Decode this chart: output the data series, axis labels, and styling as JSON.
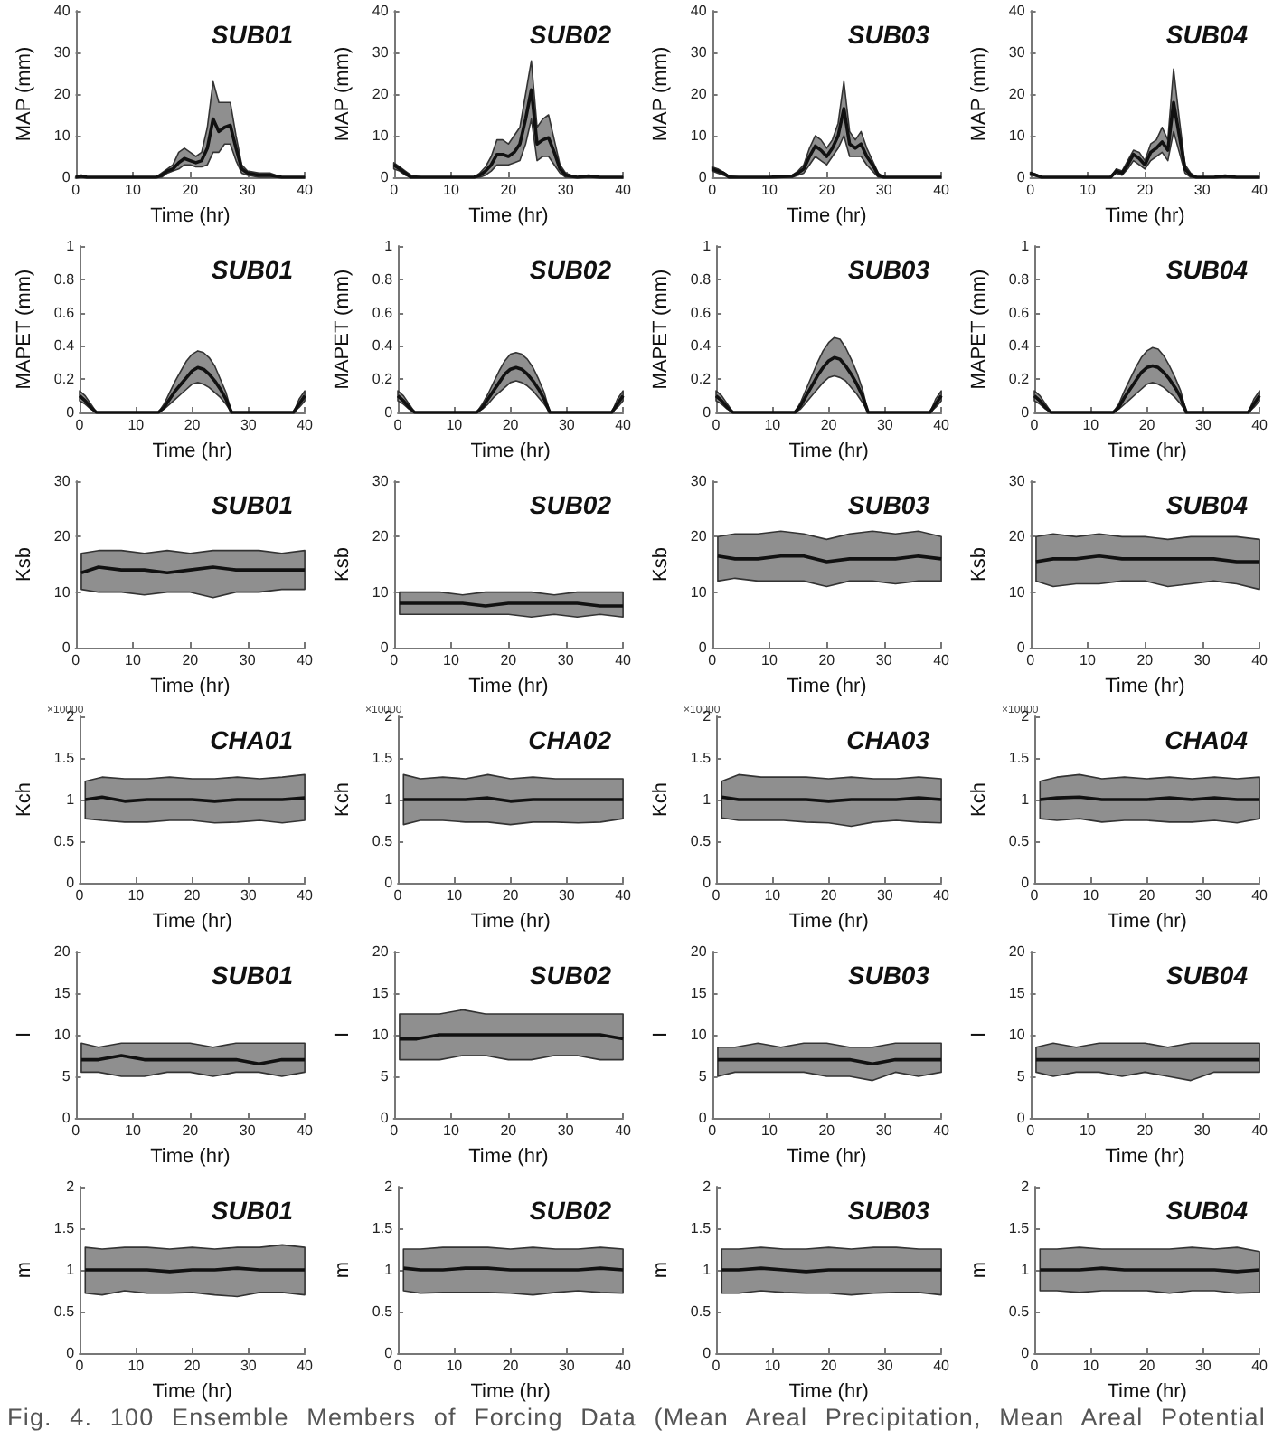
{
  "chart_data": [
    {
      "type": "line",
      "title": "SUB01",
      "xlabel": "Time (hr)",
      "ylabel": "MAP (mm)",
      "xlim": [
        0,
        40
      ],
      "xticks": [
        0,
        10,
        20,
        30,
        40
      ],
      "ylim": [
        0,
        40
      ],
      "yticks": [
        0,
        10,
        20,
        30,
        40
      ],
      "x": [
        0,
        1,
        2,
        3,
        5,
        10,
        14,
        15,
        16,
        17,
        18,
        19,
        20,
        21,
        22,
        23,
        24,
        25,
        26,
        27,
        28,
        29,
        30,
        32,
        34,
        36,
        40
      ],
      "series": [
        {
          "color": "#111111",
          "values": [
            0,
            0.3,
            0,
            0,
            0,
            0,
            0,
            0.5,
            1.5,
            2,
            3.5,
            4.5,
            4,
            3.5,
            4,
            7,
            14,
            11,
            12,
            12.5,
            7,
            2,
            1,
            0.5,
            0.5,
            0,
            0
          ],
          "upper": [
            0,
            0.5,
            0,
            0,
            0,
            0,
            0,
            1,
            2,
            3,
            6,
            7,
            6,
            5,
            6,
            12,
            23,
            18,
            18,
            18,
            10,
            3,
            1.5,
            1,
            1,
            0,
            0
          ],
          "lower": [
            0,
            0,
            0,
            0,
            0,
            0,
            0,
            0,
            1,
            1.5,
            2,
            3,
            3,
            2.5,
            2.5,
            3,
            6,
            6,
            8,
            8,
            4,
            1,
            0.5,
            0,
            0,
            0,
            0
          ]
        }
      ]
    },
    {
      "type": "line",
      "title": "SUB02",
      "xlabel": "Time (hr)",
      "ylabel": "MAP (mm)",
      "xlim": [
        0,
        40
      ],
      "xticks": [
        0,
        10,
        20,
        30,
        40
      ],
      "ylim": [
        0,
        40
      ],
      "yticks": [
        0,
        10,
        20,
        30,
        40
      ],
      "x": [
        0,
        1,
        2,
        3,
        5,
        10,
        14,
        15,
        16,
        17,
        18,
        19,
        20,
        21,
        22,
        23,
        24,
        25,
        26,
        27,
        28,
        29,
        30,
        32,
        34,
        36,
        40
      ],
      "series": [
        {
          "color": "#111111",
          "values": [
            3,
            2,
            1,
            0,
            0,
            0,
            0,
            0.5,
            1.5,
            3,
            5.5,
            5.5,
            5,
            6,
            8,
            14,
            21,
            8,
            9,
            9.5,
            6,
            2,
            0.5,
            0,
            0.3,
            0,
            0
          ],
          "upper": [
            3.5,
            2.5,
            1.5,
            0.5,
            0,
            0,
            0,
            1,
            2.5,
            5,
            9,
            9,
            8,
            10,
            12,
            20,
            28,
            12,
            14,
            15,
            9,
            3,
            1,
            0,
            0.5,
            0,
            0
          ],
          "lower": [
            2,
            1.5,
            0.5,
            0,
            0,
            0,
            0,
            0,
            0.5,
            1.5,
            3,
            3,
            3,
            3.5,
            4,
            8,
            14,
            4,
            5,
            5,
            3,
            1,
            0,
            0,
            0,
            0,
            0
          ]
        }
      ]
    },
    {
      "type": "line",
      "title": "SUB03",
      "xlabel": "Time (hr)",
      "ylabel": "MAP (mm)",
      "xlim": [
        0,
        40
      ],
      "xticks": [
        0,
        10,
        20,
        30,
        40
      ],
      "ylim": [
        0,
        40
      ],
      "yticks": [
        0,
        10,
        20,
        30,
        40
      ],
      "x": [
        0,
        1,
        2,
        3,
        5,
        10,
        14,
        15,
        16,
        17,
        18,
        19,
        20,
        21,
        22,
        23,
        24,
        25,
        26,
        27,
        28,
        29,
        30,
        32,
        34,
        36,
        40
      ],
      "series": [
        {
          "color": "#111111",
          "values": [
            2,
            1.5,
            1,
            0,
            0,
            0,
            0.3,
            1,
            2,
            5,
            7.5,
            6.5,
            5,
            7,
            10,
            16.5,
            8,
            7,
            8,
            5,
            3,
            0.5,
            0,
            0,
            0,
            0,
            0
          ],
          "upper": [
            2.5,
            2,
            1.2,
            0.3,
            0,
            0,
            0.5,
            1.5,
            3,
            7,
            10,
            9,
            7,
            9,
            13,
            23,
            11,
            9,
            11,
            7,
            4,
            1,
            0,
            0,
            0,
            0,
            0
          ],
          "lower": [
            1.5,
            1,
            0.5,
            0,
            0,
            0,
            0,
            0.5,
            1,
            3,
            5,
            4,
            3,
            5,
            7,
            10,
            5,
            5,
            5,
            3,
            1.5,
            0,
            0,
            0,
            0,
            0,
            0
          ]
        }
      ]
    },
    {
      "type": "line",
      "title": "SUB04",
      "xlabel": "Time (hr)",
      "ylabel": "MAP (mm)",
      "xlim": [
        0,
        40
      ],
      "xticks": [
        0,
        10,
        20,
        30,
        40
      ],
      "ylim": [
        0,
        40
      ],
      "yticks": [
        0,
        10,
        20,
        30,
        40
      ],
      "x": [
        0,
        1,
        2,
        3,
        5,
        10,
        14,
        15,
        16,
        17,
        18,
        19,
        20,
        21,
        22,
        23,
        24,
        25,
        26,
        27,
        28,
        29,
        30,
        32,
        34,
        36,
        40
      ],
      "series": [
        {
          "color": "#111111",
          "values": [
            1,
            0.5,
            0,
            0,
            0,
            0,
            0,
            1.5,
            1,
            3,
            5.5,
            4.5,
            3,
            6,
            7,
            8.5,
            6.5,
            18,
            10,
            2,
            0.5,
            0,
            0,
            0,
            0.3,
            0,
            0
          ],
          "upper": [
            1.2,
            0.7,
            0,
            0,
            0,
            0,
            0,
            2,
            1.5,
            4,
            6.5,
            6,
            4,
            8,
            9,
            12,
            9,
            26,
            14,
            3,
            1,
            0,
            0,
            0,
            0.5,
            0,
            0
          ],
          "lower": [
            0.5,
            0.3,
            0,
            0,
            0,
            0,
            0,
            1,
            0.5,
            2,
            4,
            3,
            2,
            4,
            5,
            6,
            4,
            11,
            6,
            1,
            0,
            0,
            0,
            0,
            0,
            0,
            0
          ]
        }
      ]
    },
    {
      "type": "line",
      "title": "SUB01",
      "xlabel": "Time (hr)",
      "ylabel": "MAPET (mm)",
      "xlim": [
        0,
        40
      ],
      "xticks": [
        0,
        10,
        20,
        30,
        40
      ],
      "ylim": [
        0,
        1
      ],
      "yticks": [
        0,
        0.2,
        0.4,
        0.6,
        0.8,
        1
      ],
      "x": [
        0,
        1,
        2,
        3,
        14,
        15,
        16,
        17,
        18,
        19,
        20,
        21,
        22,
        23,
        24,
        25,
        26,
        27,
        38,
        39,
        40
      ],
      "series": [
        {
          "color": "#111111",
          "values": [
            0.1,
            0.07,
            0.03,
            0,
            0,
            0.03,
            0.08,
            0.13,
            0.17,
            0.21,
            0.25,
            0.27,
            0.26,
            0.23,
            0.19,
            0.14,
            0.08,
            0,
            0,
            0.05,
            0.1
          ],
          "upper": [
            0.13,
            0.1,
            0.05,
            0,
            0,
            0.05,
            0.12,
            0.19,
            0.25,
            0.31,
            0.35,
            0.37,
            0.36,
            0.33,
            0.28,
            0.2,
            0.12,
            0,
            0,
            0.08,
            0.13
          ],
          "lower": [
            0.07,
            0.05,
            0.02,
            0,
            0,
            0.02,
            0.05,
            0.08,
            0.11,
            0.14,
            0.17,
            0.18,
            0.17,
            0.15,
            0.12,
            0.09,
            0.05,
            0,
            0,
            0.03,
            0.07
          ]
        }
      ]
    },
    {
      "type": "line",
      "title": "SUB02",
      "xlabel": "Time (hr)",
      "ylabel": "MAPET (mm)",
      "xlim": [
        0,
        40
      ],
      "xticks": [
        0,
        10,
        20,
        30,
        40
      ],
      "ylim": [
        0,
        1
      ],
      "yticks": [
        0,
        0.2,
        0.4,
        0.6,
        0.8,
        1
      ],
      "x": [
        0,
        1,
        2,
        3,
        14,
        15,
        16,
        17,
        18,
        19,
        20,
        21,
        22,
        23,
        24,
        25,
        26,
        27,
        38,
        39,
        40
      ],
      "series": [
        {
          "color": "#111111",
          "values": [
            0.1,
            0.07,
            0.03,
            0,
            0,
            0.03,
            0.08,
            0.13,
            0.18,
            0.23,
            0.26,
            0.27,
            0.26,
            0.23,
            0.19,
            0.14,
            0.08,
            0,
            0,
            0.05,
            0.1
          ],
          "upper": [
            0.13,
            0.1,
            0.05,
            0,
            0,
            0.05,
            0.11,
            0.18,
            0.25,
            0.31,
            0.35,
            0.36,
            0.35,
            0.32,
            0.27,
            0.2,
            0.12,
            0,
            0,
            0.08,
            0.13
          ],
          "lower": [
            0.07,
            0.05,
            0.02,
            0,
            0,
            0.02,
            0.05,
            0.09,
            0.12,
            0.15,
            0.18,
            0.19,
            0.18,
            0.16,
            0.13,
            0.09,
            0.05,
            0,
            0,
            0.03,
            0.07
          ]
        }
      ]
    },
    {
      "type": "line",
      "title": "SUB03",
      "xlabel": "Time (hr)",
      "ylabel": "MAPET (mm)",
      "xlim": [
        0,
        40
      ],
      "xticks": [
        0,
        10,
        20,
        30,
        40
      ],
      "ylim": [
        0,
        1
      ],
      "yticks": [
        0,
        0.2,
        0.4,
        0.6,
        0.8,
        1
      ],
      "x": [
        0,
        1,
        2,
        3,
        14,
        15,
        16,
        17,
        18,
        19,
        20,
        21,
        22,
        23,
        24,
        25,
        26,
        27,
        38,
        39,
        40
      ],
      "series": [
        {
          "color": "#111111",
          "values": [
            0.1,
            0.07,
            0.03,
            0,
            0,
            0.04,
            0.1,
            0.16,
            0.22,
            0.27,
            0.31,
            0.33,
            0.32,
            0.28,
            0.23,
            0.17,
            0.1,
            0,
            0,
            0.05,
            0.1
          ],
          "upper": [
            0.13,
            0.1,
            0.05,
            0,
            0,
            0.06,
            0.14,
            0.22,
            0.3,
            0.37,
            0.42,
            0.45,
            0.44,
            0.39,
            0.32,
            0.24,
            0.14,
            0,
            0,
            0.08,
            0.13
          ],
          "lower": [
            0.07,
            0.05,
            0.02,
            0,
            0,
            0.02,
            0.06,
            0.1,
            0.14,
            0.18,
            0.21,
            0.22,
            0.21,
            0.19,
            0.15,
            0.11,
            0.06,
            0,
            0,
            0.03,
            0.07
          ]
        }
      ]
    },
    {
      "type": "line",
      "title": "SUB04",
      "xlabel": "Time (hr)",
      "ylabel": "MAPET (mm)",
      "xlim": [
        0,
        40
      ],
      "xticks": [
        0,
        10,
        20,
        30,
        40
      ],
      "ylim": [
        0,
        1
      ],
      "yticks": [
        0,
        0.2,
        0.4,
        0.6,
        0.8,
        1
      ],
      "x": [
        0,
        1,
        2,
        3,
        14,
        15,
        16,
        17,
        18,
        19,
        20,
        21,
        22,
        23,
        24,
        25,
        26,
        27,
        38,
        39,
        40
      ],
      "series": [
        {
          "color": "#111111",
          "values": [
            0.1,
            0.07,
            0.03,
            0,
            0,
            0.03,
            0.09,
            0.14,
            0.19,
            0.24,
            0.27,
            0.28,
            0.27,
            0.24,
            0.2,
            0.15,
            0.09,
            0,
            0,
            0.05,
            0.1
          ],
          "upper": [
            0.13,
            0.1,
            0.05,
            0,
            0,
            0.05,
            0.13,
            0.2,
            0.27,
            0.33,
            0.37,
            0.39,
            0.38,
            0.34,
            0.28,
            0.21,
            0.13,
            0,
            0,
            0.08,
            0.13
          ],
          "lower": [
            0.07,
            0.05,
            0.02,
            0,
            0,
            0.02,
            0.05,
            0.08,
            0.11,
            0.14,
            0.17,
            0.18,
            0.17,
            0.15,
            0.12,
            0.09,
            0.05,
            0,
            0,
            0.03,
            0.07
          ]
        }
      ]
    },
    {
      "type": "line",
      "title": "SUB01",
      "xlabel": "Time (hr)",
      "ylabel": "Ksb",
      "xlim": [
        0,
        40
      ],
      "xticks": [
        0,
        10,
        20,
        30,
        40
      ],
      "ylim": [
        0,
        30
      ],
      "yticks": [
        0,
        10,
        20,
        30
      ],
      "x": [
        1,
        4,
        8,
        12,
        16,
        20,
        24,
        28,
        32,
        36,
        40
      ],
      "series": [
        {
          "color": "#111111",
          "values": [
            13.5,
            14.5,
            14,
            14,
            13.5,
            14,
            14.5,
            14,
            14,
            14,
            14
          ],
          "upper": [
            17,
            17.5,
            17.5,
            17,
            17.5,
            17,
            17.5,
            17.5,
            17.5,
            17,
            17.5
          ],
          "lower": [
            10.5,
            10,
            10,
            9.5,
            10,
            10,
            9,
            10,
            10,
            10.5,
            10.5
          ]
        }
      ]
    },
    {
      "type": "line",
      "title": "SUB02",
      "xlabel": "Time (hr)",
      "ylabel": "Ksb",
      "xlim": [
        0,
        40
      ],
      "xticks": [
        0,
        10,
        20,
        30,
        40
      ],
      "ylim": [
        0,
        30
      ],
      "yticks": [
        0,
        10,
        20,
        30
      ],
      "x": [
        1,
        4,
        8,
        12,
        16,
        20,
        24,
        28,
        32,
        36,
        40
      ],
      "series": [
        {
          "color": "#111111",
          "values": [
            8,
            8,
            8,
            8,
            7.5,
            8,
            8,
            8,
            8,
            7.5,
            7.5
          ],
          "upper": [
            10,
            10,
            10,
            9.5,
            10,
            10,
            10,
            9.5,
            10,
            10,
            10
          ],
          "lower": [
            6,
            6,
            6,
            6,
            6,
            6,
            5.5,
            6,
            5.5,
            6,
            5.5
          ]
        }
      ]
    },
    {
      "type": "line",
      "title": "SUB03",
      "xlabel": "Time (hr)",
      "ylabel": "Ksb",
      "xlim": [
        0,
        40
      ],
      "xticks": [
        0,
        10,
        20,
        30,
        40
      ],
      "ylim": [
        0,
        30
      ],
      "yticks": [
        0,
        10,
        20,
        30
      ],
      "x": [
        1,
        4,
        8,
        12,
        16,
        20,
        24,
        28,
        32,
        36,
        40
      ],
      "series": [
        {
          "color": "#111111",
          "values": [
            16.5,
            16,
            16,
            16.5,
            16.5,
            15.5,
            16,
            16,
            16,
            16.5,
            16
          ],
          "upper": [
            20,
            20.5,
            20.5,
            21,
            20.5,
            19.5,
            20.5,
            21,
            20.5,
            21,
            20
          ],
          "lower": [
            12,
            12.5,
            12,
            12,
            12,
            11,
            12,
            12,
            11.5,
            12,
            12
          ]
        }
      ]
    },
    {
      "type": "line",
      "title": "SUB04",
      "xlabel": "Time (hr)",
      "ylabel": "Ksb",
      "xlim": [
        0,
        40
      ],
      "xticks": [
        0,
        10,
        20,
        30,
        40
      ],
      "ylim": [
        0,
        30
      ],
      "yticks": [
        0,
        10,
        20,
        30
      ],
      "x": [
        1,
        4,
        8,
        12,
        16,
        20,
        24,
        28,
        32,
        36,
        40
      ],
      "series": [
        {
          "color": "#111111",
          "values": [
            15.5,
            16,
            16,
            16.5,
            16,
            16,
            16,
            16,
            16,
            15.5,
            15.5
          ],
          "upper": [
            20,
            20.5,
            20,
            20.5,
            20,
            20,
            19.5,
            20,
            20,
            20,
            19.5
          ],
          "lower": [
            12,
            11,
            11.5,
            11.5,
            12,
            12,
            11,
            11.5,
            12,
            11.5,
            10.5
          ]
        }
      ]
    },
    {
      "type": "line",
      "title": "CHA01",
      "xlabel": "Time (hr)",
      "ylabel": "Kch",
      "annotations": [
        "×10000"
      ],
      "xlim": [
        0,
        40
      ],
      "xticks": [
        0,
        10,
        20,
        30,
        40
      ],
      "ylim": [
        0,
        2
      ],
      "yticks": [
        0,
        0.5,
        1,
        1.5,
        2
      ],
      "x": [
        1,
        4,
        8,
        12,
        16,
        20,
        24,
        28,
        32,
        36,
        40
      ],
      "series": [
        {
          "color": "#111111",
          "values": [
            1,
            1.03,
            0.98,
            1,
            1,
            1,
            0.98,
            1,
            1,
            1,
            1.02
          ],
          "upper": [
            1.22,
            1.27,
            1.25,
            1.25,
            1.27,
            1.25,
            1.25,
            1.27,
            1.25,
            1.27,
            1.3
          ],
          "lower": [
            0.77,
            0.75,
            0.73,
            0.73,
            0.75,
            0.75,
            0.72,
            0.73,
            0.75,
            0.72,
            0.75
          ]
        }
      ]
    },
    {
      "type": "line",
      "title": "CHA02",
      "xlabel": "Time (hr)",
      "ylabel": "Kch",
      "annotations": [
        "×10000"
      ],
      "xlim": [
        0,
        40
      ],
      "xticks": [
        0,
        10,
        20,
        30,
        40
      ],
      "ylim": [
        0,
        2
      ],
      "yticks": [
        0,
        0.5,
        1,
        1.5,
        2
      ],
      "x": [
        1,
        4,
        8,
        12,
        16,
        20,
        24,
        28,
        32,
        36,
        40
      ],
      "series": [
        {
          "color": "#111111",
          "values": [
            1,
            1,
            1,
            1,
            1.02,
            0.98,
            1,
            1,
            1,
            1,
            1
          ],
          "upper": [
            1.3,
            1.25,
            1.27,
            1.25,
            1.3,
            1.25,
            1.27,
            1.25,
            1.25,
            1.25,
            1.25
          ],
          "lower": [
            0.7,
            0.75,
            0.75,
            0.73,
            0.73,
            0.7,
            0.73,
            0.73,
            0.72,
            0.73,
            0.77
          ]
        }
      ]
    },
    {
      "type": "line",
      "title": "CHA03",
      "xlabel": "Time (hr)",
      "ylabel": "Kch",
      "annotations": [
        "×10000"
      ],
      "xlim": [
        0,
        40
      ],
      "xticks": [
        0,
        10,
        20,
        30,
        40
      ],
      "ylim": [
        0,
        2
      ],
      "yticks": [
        0,
        0.5,
        1,
        1.5,
        2
      ],
      "x": [
        1,
        4,
        8,
        12,
        16,
        20,
        24,
        28,
        32,
        36,
        40
      ],
      "series": [
        {
          "color": "#111111",
          "values": [
            1.03,
            1,
            1,
            1,
            1,
            0.98,
            1,
            1,
            1,
            1.02,
            1
          ],
          "upper": [
            1.22,
            1.3,
            1.27,
            1.27,
            1.27,
            1.25,
            1.27,
            1.25,
            1.25,
            1.27,
            1.25
          ],
          "lower": [
            0.78,
            0.75,
            0.75,
            0.75,
            0.73,
            0.72,
            0.68,
            0.73,
            0.75,
            0.73,
            0.72
          ]
        }
      ]
    },
    {
      "type": "line",
      "title": "CHA04",
      "xlabel": "Time (hr)",
      "ylabel": "Kch",
      "annotations": [
        "×10000"
      ],
      "xlim": [
        0,
        40
      ],
      "xticks": [
        0,
        10,
        20,
        30,
        40
      ],
      "ylim": [
        0,
        2
      ],
      "yticks": [
        0,
        0.5,
        1,
        1.5,
        2
      ],
      "x": [
        1,
        4,
        8,
        12,
        16,
        20,
        24,
        28,
        32,
        36,
        40
      ],
      "series": [
        {
          "color": "#111111",
          "values": [
            1,
            1.02,
            1.03,
            1,
            1,
            1,
            1.02,
            1,
            1.02,
            1,
            1
          ],
          "upper": [
            1.22,
            1.27,
            1.3,
            1.25,
            1.27,
            1.25,
            1.27,
            1.25,
            1.27,
            1.25,
            1.27
          ],
          "lower": [
            0.77,
            0.75,
            0.77,
            0.73,
            0.75,
            0.75,
            0.73,
            0.73,
            0.75,
            0.72,
            0.77
          ]
        }
      ]
    },
    {
      "type": "line",
      "title": "SUB01",
      "xlabel": "Time (hr)",
      "ylabel": "I",
      "xlim": [
        0,
        40
      ],
      "xticks": [
        0,
        10,
        20,
        30,
        40
      ],
      "ylim": [
        0,
        20
      ],
      "yticks": [
        0,
        5,
        10,
        15,
        20
      ],
      "x": [
        1,
        4,
        8,
        12,
        16,
        20,
        24,
        28,
        32,
        36,
        40
      ],
      "series": [
        {
          "color": "#111111",
          "values": [
            7,
            7,
            7.5,
            7,
            7,
            7,
            7,
            7,
            6.5,
            7,
            7
          ],
          "upper": [
            9,
            8.5,
            9,
            9,
            9,
            9,
            8.5,
            9,
            9,
            9,
            9
          ],
          "lower": [
            5.5,
            5.5,
            5,
            5,
            5.5,
            5.5,
            5,
            5.5,
            5.5,
            5,
            5.5
          ]
        }
      ]
    },
    {
      "type": "line",
      "title": "SUB02",
      "xlabel": "Time (hr)",
      "ylabel": "I",
      "xlim": [
        0,
        40
      ],
      "xticks": [
        0,
        10,
        20,
        30,
        40
      ],
      "ylim": [
        0,
        20
      ],
      "yticks": [
        0,
        5,
        10,
        15,
        20
      ],
      "x": [
        1,
        4,
        8,
        12,
        16,
        20,
        24,
        28,
        32,
        36,
        40
      ],
      "series": [
        {
          "color": "#111111",
          "values": [
            9.5,
            9.5,
            10,
            10,
            10,
            10,
            10,
            10,
            10,
            10,
            9.5
          ],
          "upper": [
            12.5,
            12.5,
            12.5,
            13,
            12.5,
            12.5,
            12.5,
            12.5,
            12.5,
            12.5,
            12.5
          ],
          "lower": [
            7,
            7,
            7,
            7.5,
            7.5,
            7,
            7,
            7.5,
            7.5,
            7,
            7
          ]
        }
      ]
    },
    {
      "type": "line",
      "title": "SUB03",
      "xlabel": "Time (hr)",
      "ylabel": "I",
      "xlim": [
        0,
        40
      ],
      "xticks": [
        0,
        10,
        20,
        30,
        40
      ],
      "ylim": [
        0,
        20
      ],
      "yticks": [
        0,
        5,
        10,
        15,
        20
      ],
      "x": [
        1,
        4,
        8,
        12,
        16,
        20,
        24,
        28,
        32,
        36,
        40
      ],
      "series": [
        {
          "color": "#111111",
          "values": [
            7,
            7,
            7,
            7,
            7,
            7,
            7,
            6.5,
            7,
            7,
            7
          ],
          "upper": [
            8.5,
            8.5,
            9,
            8.5,
            9,
            9,
            8.5,
            8.5,
            9,
            9,
            9
          ],
          "lower": [
            5,
            5.5,
            5.5,
            5.5,
            5.5,
            5,
            5,
            4.5,
            5.5,
            5,
            5.5
          ]
        }
      ]
    },
    {
      "type": "line",
      "title": "SUB04",
      "xlabel": "Time (hr)",
      "ylabel": "I",
      "xlim": [
        0,
        40
      ],
      "xticks": [
        0,
        10,
        20,
        30,
        40
      ],
      "ylim": [
        0,
        20
      ],
      "yticks": [
        0,
        5,
        10,
        15,
        20
      ],
      "x": [
        1,
        4,
        8,
        12,
        16,
        20,
        24,
        28,
        32,
        36,
        40
      ],
      "series": [
        {
          "color": "#111111",
          "values": [
            7,
            7,
            7,
            7,
            7,
            7,
            7,
            7,
            7,
            7,
            7
          ],
          "upper": [
            8.5,
            9,
            8.5,
            9,
            9,
            9,
            8.5,
            9,
            9,
            9,
            9
          ],
          "lower": [
            5.5,
            5,
            5.5,
            5.5,
            5,
            5.5,
            5,
            4.5,
            5.5,
            5.5,
            5.5
          ]
        }
      ]
    },
    {
      "type": "line",
      "title": "SUB01",
      "xlabel": "Time (hr)",
      "ylabel": "m",
      "xlim": [
        0,
        40
      ],
      "xticks": [
        0,
        10,
        20,
        30,
        40
      ],
      "ylim": [
        0,
        2
      ],
      "yticks": [
        0,
        0.5,
        1,
        1.5,
        2
      ],
      "x": [
        1,
        4,
        8,
        12,
        16,
        20,
        24,
        28,
        32,
        36,
        40
      ],
      "series": [
        {
          "color": "#111111",
          "values": [
            1,
            1,
            1,
            1,
            0.98,
            1,
            1,
            1.02,
            1,
            1,
            1
          ],
          "upper": [
            1.27,
            1.25,
            1.27,
            1.27,
            1.25,
            1.27,
            1.25,
            1.27,
            1.27,
            1.3,
            1.27
          ],
          "lower": [
            0.72,
            0.7,
            0.75,
            0.72,
            0.72,
            0.73,
            0.7,
            0.68,
            0.73,
            0.73,
            0.7
          ]
        }
      ]
    },
    {
      "type": "line",
      "title": "SUB02",
      "xlabel": "Time (hr)",
      "ylabel": "m",
      "xlim": [
        0,
        40
      ],
      "xticks": [
        0,
        10,
        20,
        30,
        40
      ],
      "ylim": [
        0,
        2
      ],
      "yticks": [
        0,
        0.5,
        1,
        1.5,
        2
      ],
      "x": [
        1,
        4,
        8,
        12,
        16,
        20,
        24,
        28,
        32,
        36,
        40
      ],
      "series": [
        {
          "color": "#111111",
          "values": [
            1.02,
            1,
            1,
            1.02,
            1.02,
            1,
            1,
            1,
            1,
            1.02,
            1
          ],
          "upper": [
            1.25,
            1.25,
            1.27,
            1.27,
            1.27,
            1.25,
            1.27,
            1.25,
            1.25,
            1.27,
            1.25
          ],
          "lower": [
            0.75,
            0.72,
            0.73,
            0.73,
            0.73,
            0.72,
            0.7,
            0.73,
            0.75,
            0.73,
            0.72
          ]
        }
      ]
    },
    {
      "type": "line",
      "title": "SUB03",
      "xlabel": "Time (hr)",
      "ylabel": "m",
      "xlim": [
        0,
        40
      ],
      "xticks": [
        0,
        10,
        20,
        30,
        40
      ],
      "ylim": [
        0,
        2
      ],
      "yticks": [
        0,
        0.5,
        1,
        1.5,
        2
      ],
      "x": [
        1,
        4,
        8,
        12,
        16,
        20,
        24,
        28,
        32,
        36,
        40
      ],
      "series": [
        {
          "color": "#111111",
          "values": [
            1,
            1,
            1.02,
            1,
            0.98,
            1,
            1,
            1,
            1,
            1,
            1
          ],
          "upper": [
            1.25,
            1.25,
            1.27,
            1.25,
            1.25,
            1.27,
            1.25,
            1.27,
            1.27,
            1.25,
            1.25
          ],
          "lower": [
            0.72,
            0.72,
            0.75,
            0.73,
            0.72,
            0.72,
            0.7,
            0.72,
            0.73,
            0.73,
            0.7
          ]
        }
      ]
    },
    {
      "type": "line",
      "title": "SUB04",
      "xlabel": "Time (hr)",
      "ylabel": "m",
      "xlim": [
        0,
        40
      ],
      "xticks": [
        0,
        10,
        20,
        30,
        40
      ],
      "ylim": [
        0,
        2
      ],
      "yticks": [
        0,
        0.5,
        1,
        1.5,
        2
      ],
      "x": [
        1,
        4,
        8,
        12,
        16,
        20,
        24,
        28,
        32,
        36,
        40
      ],
      "series": [
        {
          "color": "#111111",
          "values": [
            1,
            1,
            1,
            1.02,
            1,
            1,
            1,
            1,
            1,
            0.98,
            1
          ],
          "upper": [
            1.25,
            1.25,
            1.27,
            1.25,
            1.25,
            1.25,
            1.25,
            1.27,
            1.25,
            1.27,
            1.22
          ],
          "lower": [
            0.75,
            0.75,
            0.73,
            0.75,
            0.75,
            0.75,
            0.72,
            0.75,
            0.75,
            0.72,
            0.73
          ]
        }
      ]
    },
    {
      "type": "other",
      "annotations": [
        "Fig. 4. 100 Ensemble Members of Forcing Data (Mean Areal Precipitation, Mean Areal Potential"
      ]
    }
  ]
}
